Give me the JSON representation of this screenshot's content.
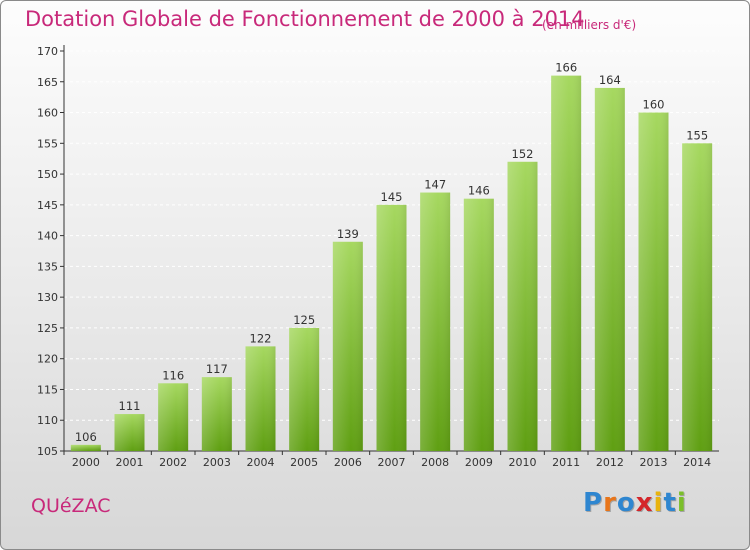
{
  "header": {
    "title": "Dotation Globale de Fonctionnement de 2000 à 2014",
    "subtitle": "(en milliers d'€)"
  },
  "footer": {
    "town": "QUéZAC",
    "logo_text": "Proxiti",
    "logo_colors": [
      "#2e86d0",
      "#e8751a",
      "#2e86d0",
      "#d4262b",
      "#e8b30e",
      "#2e86d0",
      "#7bbf2a"
    ]
  },
  "colors": {
    "accent": "#c8297a",
    "bar_light": "#a6d860",
    "bar_dark": "#5f9f12"
  },
  "chart_data": {
    "type": "bar",
    "categories": [
      "2000",
      "2001",
      "2002",
      "2003",
      "2004",
      "2005",
      "2006",
      "2007",
      "2008",
      "2009",
      "2010",
      "2011",
      "2012",
      "2013",
      "2014"
    ],
    "values": [
      106,
      111,
      116,
      117,
      122,
      125,
      139,
      145,
      147,
      146,
      152,
      166,
      164,
      160,
      155
    ],
    "title": "Dotation Globale de Fonctionnement de 2000 à 2014",
    "subtitle": "(en milliers d'€)",
    "xlabel": "",
    "ylabel": "",
    "ylim": [
      105,
      170
    ],
    "yticks": [
      105,
      110,
      115,
      120,
      125,
      130,
      135,
      140,
      145,
      150,
      155,
      160,
      165,
      170
    ],
    "grid": true,
    "legend": "none"
  }
}
